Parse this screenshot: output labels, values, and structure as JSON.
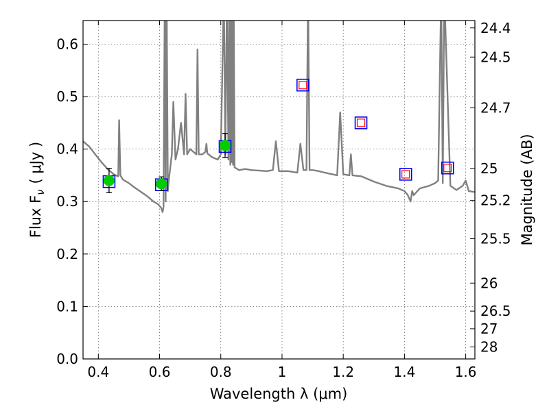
{
  "chart_data": {
    "type": "scatter",
    "title": "",
    "xlabel": "Wavelength  λ (μm)",
    "ylabel": "Flux  F",
    "ylabel_sub": "ν",
    "ylabel_unit": "( μJy )",
    "y2label": "Magnitude (AB)",
    "xlim": [
      0.35,
      1.63
    ],
    "ylim": [
      0.0,
      0.645
    ],
    "x_ticks": [
      0.4,
      0.6,
      0.8,
      1.0,
      1.2,
      1.4,
      1.6
    ],
    "x_tick_labels": [
      "0.4",
      "0.6",
      "0.8",
      "1",
      "1.2",
      "1.4",
      "1.6"
    ],
    "y_ticks": [
      0.0,
      0.1,
      0.2,
      0.3,
      0.4,
      0.5,
      0.6
    ],
    "y_tick_labels": [
      "0.0",
      "0.1",
      "0.2",
      "0.3",
      "0.4",
      "0.5",
      "0.6"
    ],
    "y2_ticks": [
      24.4,
      24.5,
      24.7,
      25,
      25.2,
      25.5,
      26,
      26.5,
      27,
      28
    ],
    "y2_tick_labels": [
      "24.4",
      "24.5",
      "24.7",
      "25",
      "25.2",
      "25.5",
      "26",
      "26.5",
      "27",
      "28"
    ],
    "grid": true,
    "colors": {
      "model": "#808080",
      "observed": "#00cc00",
      "model_box": "#0000ff",
      "upper_limit": "#ff0000",
      "errorbar": "#000000"
    },
    "observed_photometry": {
      "x": [
        0.435,
        0.606,
        0.814
      ],
      "y": [
        0.34,
        0.334,
        0.407
      ],
      "yerr": [
        0.023,
        0.013,
        0.023
      ]
    },
    "model_photometry": {
      "x": [
        0.435,
        0.606,
        0.814,
        1.068,
        1.258,
        1.404,
        1.541
      ],
      "y": [
        0.338,
        0.332,
        0.405,
        0.522,
        0.45,
        0.352,
        0.364
      ]
    },
    "nondetections": {
      "x": [
        1.068,
        1.258,
        1.404,
        1.541
      ],
      "y": [
        0.522,
        0.45,
        0.352,
        0.364
      ]
    },
    "model_spectrum": {
      "x": [
        0.35,
        0.37,
        0.39,
        0.41,
        0.43,
        0.45,
        0.465,
        0.468,
        0.472,
        0.48,
        0.5,
        0.52,
        0.54,
        0.56,
        0.58,
        0.595,
        0.605,
        0.61,
        0.613,
        0.617,
        0.62,
        0.623,
        0.627,
        0.63,
        0.64,
        0.645,
        0.652,
        0.66,
        0.67,
        0.68,
        0.685,
        0.69,
        0.7,
        0.72,
        0.724,
        0.728,
        0.74,
        0.75,
        0.753,
        0.756,
        0.77,
        0.79,
        0.8,
        0.81,
        0.815,
        0.82,
        0.825,
        0.828,
        0.831,
        0.834,
        0.836,
        0.838,
        0.84,
        0.842,
        0.845,
        0.86,
        0.88,
        0.9,
        0.95,
        0.97,
        0.98,
        0.99,
        1.02,
        1.05,
        1.06,
        1.07,
        1.08,
        1.085,
        1.09,
        1.1,
        1.12,
        1.14,
        1.18,
        1.19,
        1.2,
        1.22,
        1.225,
        1.23,
        1.26,
        1.3,
        1.34,
        1.38,
        1.4,
        1.41,
        1.42,
        1.425,
        1.43,
        1.45,
        1.48,
        1.5,
        1.51,
        1.52,
        1.525,
        1.53,
        1.55,
        1.57,
        1.59,
        1.6,
        1.61,
        1.63
      ],
      "y": [
        0.415,
        0.405,
        0.39,
        0.375,
        0.362,
        0.352,
        0.348,
        0.455,
        0.35,
        0.342,
        0.335,
        0.326,
        0.318,
        0.31,
        0.3,
        0.295,
        0.288,
        0.28,
        0.29,
        0.7,
        0.3,
        0.7,
        0.32,
        0.34,
        0.39,
        0.49,
        0.38,
        0.4,
        0.45,
        0.39,
        0.505,
        0.39,
        0.4,
        0.39,
        0.59,
        0.39,
        0.39,
        0.395,
        0.41,
        0.392,
        0.385,
        0.38,
        0.39,
        0.7,
        0.39,
        0.7,
        0.38,
        0.7,
        0.37,
        0.7,
        0.375,
        0.7,
        0.37,
        0.7,
        0.365,
        0.36,
        0.362,
        0.36,
        0.358,
        0.36,
        0.415,
        0.358,
        0.358,
        0.355,
        0.41,
        0.36,
        0.36,
        0.7,
        0.36,
        0.36,
        0.358,
        0.355,
        0.35,
        0.47,
        0.352,
        0.35,
        0.39,
        0.35,
        0.348,
        0.338,
        0.33,
        0.325,
        0.32,
        0.313,
        0.3,
        0.32,
        0.312,
        0.325,
        0.33,
        0.335,
        0.34,
        0.7,
        0.335,
        0.7,
        0.33,
        0.322,
        0.33,
        0.34,
        0.32,
        0.318
      ]
    }
  }
}
